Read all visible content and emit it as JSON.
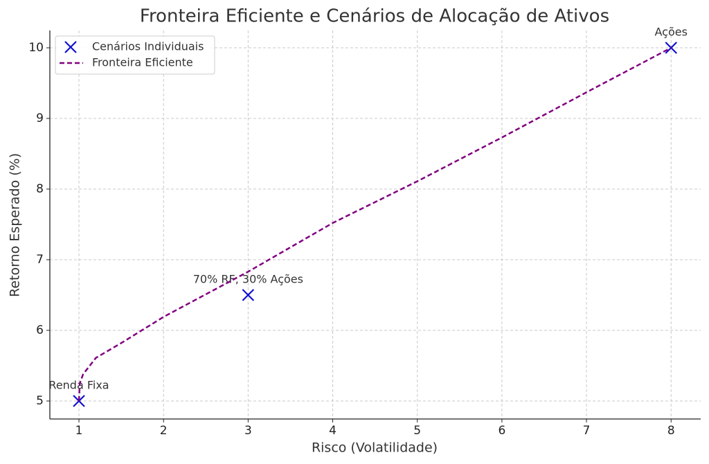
{
  "chart_data": {
    "type": "scatter",
    "title": "Fronteira Eficiente e Cenários de Alocação de Ativos",
    "x_label": "Risco (Volatilidade)",
    "y_label": "Retorno Esperado (%)",
    "xlim": [
      0.656,
      8.35
    ],
    "ylim": [
      4.745,
      10.245
    ],
    "xticks": [
      1,
      2,
      3,
      4,
      5,
      6,
      7,
      8
    ],
    "yticks": [
      5,
      6,
      7,
      8,
      9,
      10
    ],
    "grid": true,
    "legend": "upper left",
    "series": [
      {
        "name": "Cenários Individuais",
        "type": "scatter",
        "color": "#1010d0",
        "x": [
          1,
          3,
          8
        ],
        "values": [
          5,
          6.5,
          10
        ],
        "point_labels": [
          "Renda Fixa",
          "70% RF, 30% Ações",
          "Ações"
        ]
      },
      {
        "name": "Fronteira Eficiente",
        "type": "line",
        "color": "#800080",
        "x": [
          1,
          1.01,
          1.05,
          1.2,
          1.5,
          2,
          3,
          4,
          5,
          6,
          7,
          8
        ],
        "values": [
          5,
          5.25,
          5.38,
          5.61,
          5.82,
          6.19,
          6.83,
          7.52,
          8.11,
          8.73,
          9.37,
          10
        ]
      }
    ]
  }
}
